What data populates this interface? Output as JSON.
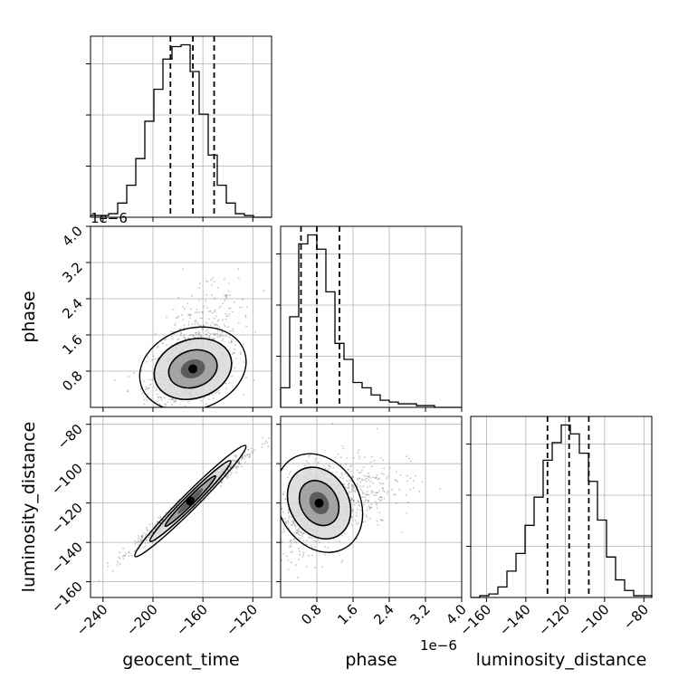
{
  "chart_data": {
    "type": "corner",
    "parameters": [
      "geocent_time",
      "phase",
      "luminosity_distance"
    ],
    "axes": {
      "geocent_time": {
        "label": "geocent_time",
        "range": [
          -250,
          -105
        ],
        "ticks": [
          -240,
          -200,
          -160,
          -120
        ],
        "tick_labels": [
          "−240",
          "−200",
          "−160",
          "−120"
        ]
      },
      "phase": {
        "label": "phase",
        "range": [
          0,
          4e-06
        ],
        "ticks": [
          8e-07,
          1.6e-06,
          2.4e-06,
          3.2e-06,
          4e-06
        ],
        "tick_labels": [
          "0.8",
          "1.6",
          "2.4",
          "3.2",
          "4.0"
        ],
        "offset_text": "1e−6"
      },
      "luminosity_distance": {
        "label": "luminosity_distance",
        "range": [
          -168,
          -76
        ],
        "ticks": [
          -160,
          -140,
          -120,
          -100,
          -80
        ],
        "tick_labels": [
          "−160",
          "−140",
          "−120",
          "−100",
          "−80"
        ]
      }
    },
    "histograms": [
      {
        "param": "geocent_time",
        "bin_edges": [
          -250,
          -242.75,
          -235.5,
          -228.25,
          -221,
          -213.75,
          -206.5,
          -199.25,
          -192,
          -184.75,
          -177.5,
          -170.25,
          -163,
          -155.75,
          -148.5,
          -141.25,
          -134,
          -126.75,
          -119.5,
          -112.25,
          -105
        ],
        "counts": [
          1,
          1,
          2,
          8,
          18,
          33,
          54,
          72,
          89,
          96,
          97,
          82,
          58,
          35,
          18,
          8,
          2,
          1,
          0,
          0
        ],
        "quantiles": [
          -186,
          -168,
          -151
        ]
      },
      {
        "param": "phase",
        "bin_edges": [
          0,
          2e-07,
          4e-07,
          6e-07,
          8e-07,
          1e-06,
          1.2e-06,
          1.4e-06,
          1.6e-06,
          1.8e-06,
          2e-06,
          2.2e-06,
          2.4e-06,
          2.6e-06,
          2.8e-06,
          3e-06,
          3.2e-06,
          3.4e-06,
          3.6e-06,
          3.8e-06,
          4e-06
        ],
        "counts": [
          11,
          51,
          92,
          97,
          89,
          65,
          36,
          27,
          14,
          11,
          7,
          4,
          3,
          2,
          2,
          1,
          1,
          0,
          0,
          0
        ],
        "quantiles": [
          4.5e-07,
          8e-07,
          1.3e-06
        ]
      },
      {
        "param": "luminosity_distance",
        "bin_edges": [
          -168,
          -163.4,
          -158.8,
          -154.2,
          -149.6,
          -145,
          -140.4,
          -135.8,
          -131.2,
          -126.6,
          -122,
          -117.4,
          -112.8,
          -108.2,
          -103.6,
          -99,
          -94.4,
          -89.8,
          -85.2,
          -80.6,
          -76
        ],
        "counts": [
          0,
          1,
          2,
          6,
          15,
          25,
          41,
          57,
          78,
          88,
          98,
          93,
          82,
          66,
          44,
          23,
          10,
          4,
          1,
          1
        ],
        "quantiles": [
          -129,
          -118,
          -108
        ]
      }
    ],
    "panels_2d": [
      {
        "x": "geocent_time",
        "y": "phase",
        "center": [
          -170,
          8e-07
        ],
        "correlation": 0.45
      },
      {
        "x": "geocent_time",
        "y": "luminosity_distance",
        "center": [
          -170,
          -119
        ],
        "correlation": 0.99
      },
      {
        "x": "phase",
        "y": "luminosity_distance",
        "center": [
          8e-07,
          -119
        ],
        "correlation": 0.4
      }
    ],
    "grid": true
  }
}
